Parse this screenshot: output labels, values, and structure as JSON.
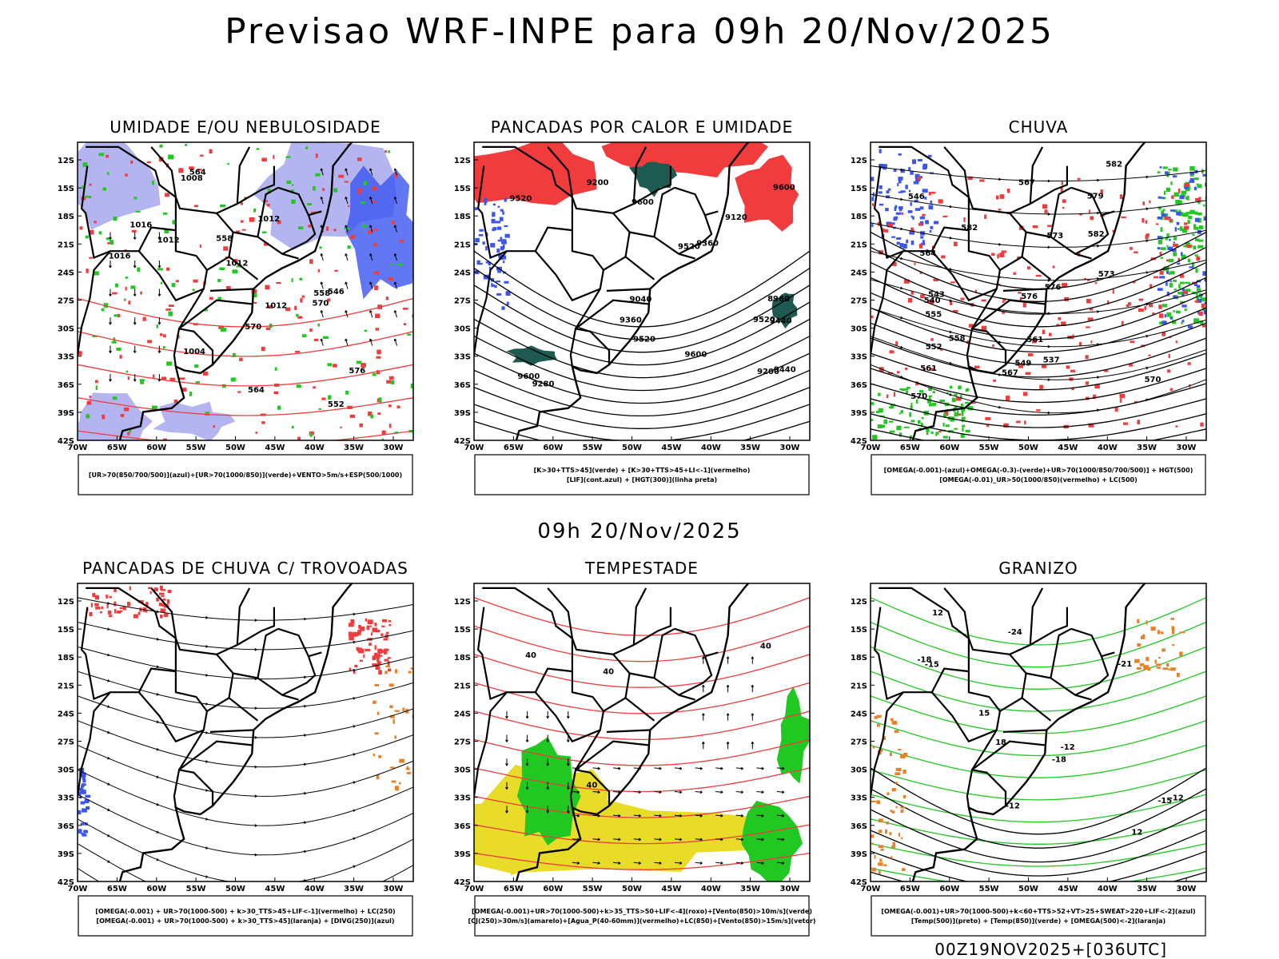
{
  "title": "Previsao WRF-INPE  para 09h 20/Nov/2025",
  "mid_time": "09h 20/Nov/2025",
  "footer": "00Z19NOV2025+[036UTC]",
  "colors": {
    "blue_fill": "#3a55f0",
    "lavender": "#b4b4f0",
    "red": "#f03c3c",
    "green": "#22c822",
    "dark_teal": "#1e5a52",
    "yellow": "#e8dc28",
    "orange": "#e8822a"
  },
  "chart_data": [
    {
      "type": "map",
      "title": "UMIDADE E/OU NEBULOSIDADE",
      "lat_ticks": [
        "12S",
        "15S",
        "18S",
        "21S",
        "24S",
        "27S",
        "30S",
        "33S",
        "36S",
        "39S",
        "42S"
      ],
      "lon_ticks": [
        "70W",
        "65W",
        "60W",
        "55W",
        "50W",
        "45W",
        "40W",
        "35W",
        "30W"
      ],
      "contour_labels": [
        "1012",
        "1016",
        "1012",
        "1008",
        "1004",
        "1012",
        "1016",
        "1012",
        "576",
        "570",
        "564",
        "558",
        "552",
        "546",
        "570",
        "564",
        "558"
      ],
      "caption": [
        "[UR>70(850/700/500)](azul)+[UR>70(1000/850)](verde)+VENTO>5m/s+ESP(500/1000)"
      ]
    },
    {
      "type": "map",
      "title": "PANCADAS POR CALOR E UMIDADE",
      "lat_ticks": [
        "12S",
        "15S",
        "18S",
        "21S",
        "24S",
        "27S",
        "30S",
        "33S",
        "36S",
        "39S",
        "42S"
      ],
      "lon_ticks": [
        "70W",
        "65W",
        "60W",
        "55W",
        "50W",
        "45W",
        "40W",
        "35W",
        "30W"
      ],
      "contour_labels": [
        "9600",
        "9600",
        "9600",
        "9600",
        "9520",
        "9520",
        "9520",
        "9520",
        "9440",
        "9440",
        "9360",
        "9360",
        "9280",
        "9200",
        "9200",
        "9120",
        "9040",
        "8960"
      ],
      "caption": [
        "[K>30+TTS>45](verde)  +  [K>30+TTS>45+LI<-1](vermelho)",
        "[LIF](cont.azul)  +  [HGT(300)](linha preta)"
      ]
    },
    {
      "type": "map",
      "title": "CHUVA",
      "lat_ticks": [
        "12S",
        "15S",
        "18S",
        "21S",
        "24S",
        "27S",
        "30S",
        "33S",
        "36S",
        "39S",
        "42S"
      ],
      "lon_ticks": [
        "70W",
        "65W",
        "60W",
        "55W",
        "50W",
        "45W",
        "40W",
        "35W",
        "30W"
      ],
      "contour_labels": [
        "582",
        "582",
        "582",
        "579",
        "576",
        "573",
        "570",
        "567",
        "561",
        "558",
        "555",
        "552",
        "549",
        "546",
        "543",
        "540",
        "537",
        "576",
        "573",
        "570",
        "567",
        "564",
        "561"
      ],
      "caption": [
        "[OMEGA(-0.001)-(azul)+OMEGA(-0.3)-(verde)+UR>70(1000/850/700/500)]  +  HGT(500)",
        "[OMEGA(-0.01)_UR>50(1000/850)(vermelho)  +  LC(500)"
      ]
    },
    {
      "type": "map",
      "title": "PANCADAS DE CHUVA C/ TROVOADAS",
      "lat_ticks": [
        "12S",
        "15S",
        "18S",
        "21S",
        "24S",
        "27S",
        "30S",
        "33S",
        "36S",
        "39S",
        "42S"
      ],
      "lon_ticks": [
        "70W",
        "65W",
        "60W",
        "55W",
        "50W",
        "45W",
        "40W",
        "35W",
        "30W"
      ],
      "contour_labels": [],
      "caption": [
        "[OMEGA(-0.001)  +  UR>70(1000-500)  +  k>30_TTS>45+LIF<-1](vermelho)  +  LC(250)",
        "[OMEGA(-0.001)  +  UR>70(1000-500)  +  k>30_TTS>45](laranja)  +  [DIVG(250)](azul)"
      ]
    },
    {
      "type": "map",
      "title": "TEMPESTADE",
      "lat_ticks": [
        "12S",
        "15S",
        "18S",
        "21S",
        "24S",
        "27S",
        "30S",
        "33S",
        "36S",
        "39S",
        "42S"
      ],
      "lon_ticks": [
        "70W",
        "65W",
        "60W",
        "55W",
        "50W",
        "45W",
        "40W",
        "35W",
        "30W"
      ],
      "contour_labels": [
        "40",
        "40",
        "40",
        "40"
      ],
      "caption": [
        "[OMEGA(-0.001)+UR>70(1000-500)+k>35_TTS>50+LIF<-4](roxo)+[Vento(850)>10m/s](verde)",
        "[CJ(250)>30m/s](amarelo)+[Agua_P(40-60mm)](vermelho)+LC(850)+[Vento(850)>15m/s](vetor)"
      ]
    },
    {
      "type": "map",
      "title": "GRANIZO",
      "lat_ticks": [
        "12S",
        "15S",
        "18S",
        "21S",
        "24S",
        "27S",
        "30S",
        "33S",
        "36S",
        "39S",
        "42S"
      ],
      "lon_ticks": [
        "70W",
        "65W",
        "60W",
        "55W",
        "50W",
        "45W",
        "40W",
        "35W",
        "30W"
      ],
      "contour_labels": [
        "-12",
        "-15",
        "-18",
        "-21",
        "-24",
        "-12",
        "-15",
        "-18",
        "-12",
        "12",
        "15",
        "12",
        "18"
      ],
      "caption": [
        "[OMEGA(-0.001)+UR>70(1000-500)+k<60+TTS>52+VT>25+SWEAT>220+LIF<-2](azul)",
        "[Temp(500)](preto)  +  [Temp(850)](verde)  +  [OMEGA(500)<-2](laranja)"
      ]
    }
  ]
}
